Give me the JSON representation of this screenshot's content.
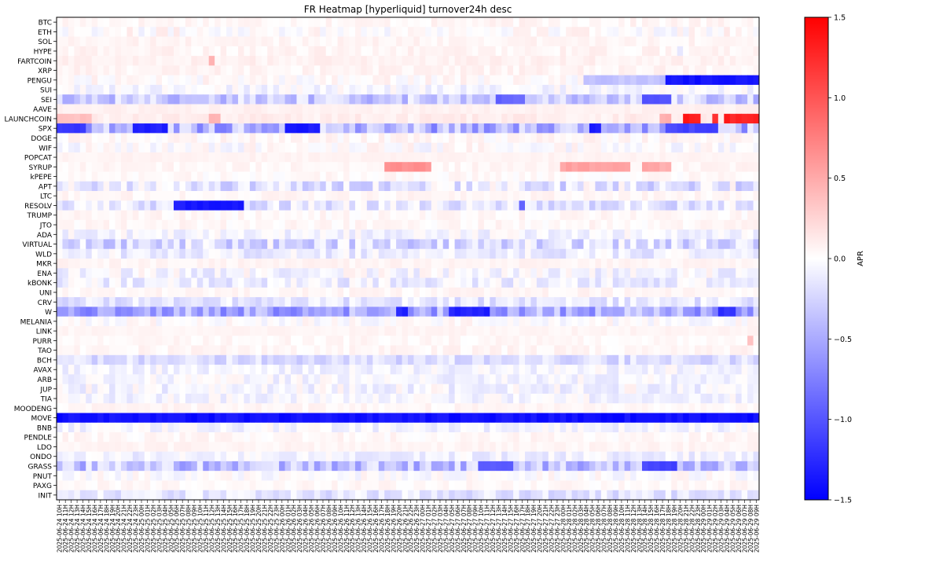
{
  "chart_data": {
    "type": "heatmap",
    "title": "FR Heatmap [hyperliquid] turnover24h desc",
    "colorbar": {
      "label": "APR",
      "range": [
        -1.5,
        1.5
      ],
      "ticks": [
        1.5,
        1.0,
        0.5,
        0.0,
        -0.5,
        -1.0,
        -1.5
      ],
      "tick_labels": [
        "1.5",
        "1.0",
        "0.5",
        "0.0",
        "−0.5",
        "−1.0",
        "−1.5"
      ],
      "colormap": [
        "#0000ff",
        "#ffffff",
        "#ff0000"
      ]
    },
    "rows": [
      "BTC",
      "ETH",
      "SOL",
      "HYPE",
      "FARTCOIN",
      "XRP",
      "PENGU",
      "SUI",
      "SEI",
      "AAVE",
      "LAUNCHCOIN",
      "SPX",
      "DOGE",
      "WIF",
      "POPCAT",
      "SYRUP",
      "kPEPE",
      "APT",
      "LTC",
      "RESOLV",
      "TRUMP",
      "JTO",
      "ADA",
      "VIRTUAL",
      "WLD",
      "MKR",
      "ENA",
      "kBONK",
      "UNI",
      "CRV",
      "W",
      "MELANIA",
      "LINK",
      "PURR",
      "TAO",
      "BCH",
      "AVAX",
      "ARB",
      "JUP",
      "TIA",
      "MOODENG",
      "MOVE",
      "BNB",
      "PENDLE",
      "LDO",
      "ONDO",
      "GRASS",
      "PNUT",
      "PAXG",
      "INIT"
    ],
    "x": {
      "start": "2025-06-24 10H",
      "step_hours": 1,
      "count": 120,
      "tick_labels": [
        "2025-06-24 10H",
        "2025-06-24 11H",
        "2025-06-24 12H",
        "2025-06-24 13H",
        "2025-06-24 14H",
        "2025-06-24 15H",
        "2025-06-24 16H",
        "2025-06-24 17H",
        "2025-06-24 18H",
        "2025-06-24 19H",
        "2025-06-24 20H",
        "2025-06-24 21H",
        "2025-06-24 22H",
        "2025-06-24 23H",
        "2025-06-25 00H",
        "2025-06-25 01H",
        "2025-06-25 02H",
        "2025-06-25 03H",
        "2025-06-25 04H",
        "2025-06-25 05H",
        "2025-06-25 06H",
        "2025-06-25 07H",
        "2025-06-25 08H",
        "2025-06-25 09H",
        "2025-06-25 10H",
        "2025-06-25 11H",
        "2025-06-25 12H",
        "2025-06-25 13H",
        "2025-06-25 14H",
        "2025-06-25 15H",
        "2025-06-25 16H",
        "2025-06-25 17H",
        "2025-06-25 18H",
        "2025-06-25 19H",
        "2025-06-25 20H",
        "2025-06-25 21H",
        "2025-06-25 22H",
        "2025-06-25 23H",
        "2025-06-26 00H",
        "2025-06-26 01H",
        "2025-06-26 02H",
        "2025-06-26 03H",
        "2025-06-26 04H",
        "2025-06-26 05H",
        "2025-06-26 06H",
        "2025-06-26 07H",
        "2025-06-26 08H",
        "2025-06-26 09H",
        "2025-06-26 10H",
        "2025-06-26 11H",
        "2025-06-26 12H",
        "2025-06-26 13H",
        "2025-06-26 14H",
        "2025-06-26 15H",
        "2025-06-26 16H",
        "2025-06-26 17H",
        "2025-06-26 18H",
        "2025-06-26 19H",
        "2025-06-26 20H",
        "2025-06-26 21H",
        "2025-06-26 22H",
        "2025-06-26 23H",
        "2025-06-27 00H",
        "2025-06-27 01H",
        "2025-06-27 02H",
        "2025-06-27 03H",
        "2025-06-27 04H",
        "2025-06-27 05H",
        "2025-06-27 06H",
        "2025-06-27 07H",
        "2025-06-27 08H",
        "2025-06-27 09H",
        "2025-06-27 10H",
        "2025-06-27 11H",
        "2025-06-27 12H",
        "2025-06-27 13H",
        "2025-06-27 14H",
        "2025-06-27 15H",
        "2025-06-27 16H",
        "2025-06-27 17H",
        "2025-06-27 18H",
        "2025-06-27 19H",
        "2025-06-27 20H",
        "2025-06-27 21H",
        "2025-06-27 22H",
        "2025-06-27 23H",
        "2025-06-28 00H",
        "2025-06-28 01H",
        "2025-06-28 02H",
        "2025-06-28 03H",
        "2025-06-28 04H",
        "2025-06-28 05H",
        "2025-06-28 06H",
        "2025-06-28 07H",
        "2025-06-28 08H",
        "2025-06-28 09H",
        "2025-06-28 10H",
        "2025-06-28 11H",
        "2025-06-28 12H",
        "2025-06-28 13H",
        "2025-06-28 14H",
        "2025-06-28 15H",
        "2025-06-28 16H",
        "2025-06-28 17H",
        "2025-06-28 18H",
        "2025-06-28 19H",
        "2025-06-28 20H",
        "2025-06-28 21H",
        "2025-06-28 22H",
        "2025-06-28 23H",
        "2025-06-29 00H",
        "2025-06-29 01H",
        "2025-06-29 02H",
        "2025-06-29 03H",
        "2025-06-29 04H",
        "2025-06-29 05H",
        "2025-06-29 06H",
        "2025-06-29 07H",
        "2025-06-29 08H",
        "2025-06-29 09H"
      ]
    },
    "row_patterns": [
      {
        "base": 0.05,
        "noise": 0.06
      },
      {
        "base": 0.02,
        "noise": 0.12
      },
      {
        "base": 0.06,
        "noise": 0.05
      },
      {
        "base": 0.06,
        "noise": 0.06,
        "events": [
          {
            "from": 106,
            "to": 106,
            "value": -0.2
          }
        ]
      },
      {
        "base": 0.08,
        "noise": 0.05,
        "events": [
          {
            "from": 26,
            "to": 26,
            "value": 0.45
          }
        ]
      },
      {
        "base": 0.06,
        "noise": 0.06
      },
      {
        "base": 0.02,
        "noise": 0.1,
        "events": [
          {
            "from": 90,
            "to": 103,
            "value": -0.35
          },
          {
            "from": 104,
            "to": 119,
            "value": -1.4
          }
        ]
      },
      {
        "base": -0.05,
        "noise": 0.12
      },
      {
        "base": -0.3,
        "noise": 0.25,
        "events": [
          {
            "from": 75,
            "to": 79,
            "value": -0.9
          },
          {
            "from": 100,
            "to": 104,
            "value": -1.0
          }
        ]
      },
      {
        "base": 0.08,
        "noise": 0.03
      },
      {
        "base": 0.1,
        "noise": 0.06,
        "events": [
          {
            "from": 0,
            "to": 5,
            "value": 0.35
          },
          {
            "from": 26,
            "to": 27,
            "value": 0.4
          },
          {
            "from": 103,
            "to": 104,
            "value": 0.45
          },
          {
            "from": 107,
            "to": 109,
            "value": 1.35
          },
          {
            "from": 112,
            "to": 112,
            "value": 1.2
          },
          {
            "from": 114,
            "to": 119,
            "value": 1.3
          }
        ]
      },
      {
        "base": -0.45,
        "noise": 0.35,
        "events": [
          {
            "from": 0,
            "to": 4,
            "value": -1.2
          },
          {
            "from": 13,
            "to": 18,
            "value": -1.3
          },
          {
            "from": 39,
            "to": 44,
            "value": -1.35
          },
          {
            "from": 91,
            "to": 92,
            "value": -1.3
          },
          {
            "from": 104,
            "to": 112,
            "value": -1.1
          }
        ]
      },
      {
        "base": 0.04,
        "noise": 0.08
      },
      {
        "base": 0.0,
        "noise": 0.12
      },
      {
        "base": 0.07,
        "noise": 0.03
      },
      {
        "base": 0.05,
        "noise": 0.05,
        "events": [
          {
            "from": 56,
            "to": 63,
            "value": 0.65
          },
          {
            "from": 86,
            "to": 97,
            "value": 0.55
          },
          {
            "from": 100,
            "to": 104,
            "value": 0.5
          }
        ]
      },
      {
        "base": 0.03,
        "noise": 0.06
      },
      {
        "base": -0.15,
        "noise": 0.25
      },
      {
        "base": 0.05,
        "noise": 0.05
      },
      {
        "base": -0.15,
        "noise": 0.2,
        "events": [
          {
            "from": 20,
            "to": 31,
            "value": -1.35
          },
          {
            "from": 79,
            "to": 79,
            "value": -0.9
          }
        ]
      },
      {
        "base": 0.04,
        "noise": 0.06
      },
      {
        "base": 0.04,
        "noise": 0.06
      },
      {
        "base": -0.05,
        "noise": 0.12
      },
      {
        "base": -0.2,
        "noise": 0.25
      },
      {
        "base": -0.1,
        "noise": 0.15
      },
      {
        "base": 0.06,
        "noise": 0.04
      },
      {
        "base": -0.05,
        "noise": 0.15
      },
      {
        "base": -0.1,
        "noise": 0.15
      },
      {
        "base": 0.05,
        "noise": 0.05
      },
      {
        "base": -0.15,
        "noise": 0.15
      },
      {
        "base": -0.5,
        "noise": 0.3,
        "events": [
          {
            "from": 67,
            "to": 73,
            "value": -1.3
          },
          {
            "from": 58,
            "to": 59,
            "value": -1.3
          },
          {
            "from": 113,
            "to": 115,
            "value": -1.2
          }
        ]
      },
      {
        "base": 0.0,
        "noise": 0.1
      },
      {
        "base": 0.06,
        "noise": 0.03
      },
      {
        "base": 0.04,
        "noise": 0.05,
        "events": [
          {
            "from": 118,
            "to": 118,
            "value": 0.3
          }
        ]
      },
      {
        "base": 0.05,
        "noise": 0.06
      },
      {
        "base": -0.2,
        "noise": 0.15
      },
      {
        "base": -0.05,
        "noise": 0.12
      },
      {
        "base": -0.05,
        "noise": 0.12
      },
      {
        "base": -0.05,
        "noise": 0.15
      },
      {
        "base": -0.05,
        "noise": 0.12
      },
      {
        "base": 0.05,
        "noise": 0.05
      },
      {
        "base": -1.4,
        "noise": 0.08
      },
      {
        "base": -0.05,
        "noise": 0.12
      },
      {
        "base": 0.04,
        "noise": 0.06
      },
      {
        "base": 0.06,
        "noise": 0.04
      },
      {
        "base": -0.08,
        "noise": 0.12
      },
      {
        "base": -0.35,
        "noise": 0.3,
        "events": [
          {
            "from": 72,
            "to": 77,
            "value": -1.0
          },
          {
            "from": 100,
            "to": 105,
            "value": -1.1
          }
        ]
      },
      {
        "base": 0.0,
        "noise": 0.1
      },
      {
        "base": 0.04,
        "noise": 0.05
      },
      {
        "base": -0.15,
        "noise": 0.15
      }
    ]
  }
}
